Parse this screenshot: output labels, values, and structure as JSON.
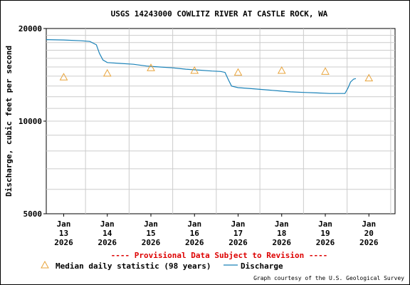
{
  "chart_data": {
    "type": "line",
    "title": "USGS 14243000 COWLITZ RIVER AT CASTLE ROCK, WA",
    "ylabel": "Discharge, cubic feet per second",
    "xlabel": "",
    "y_scale": "log",
    "ylim": [
      5000,
      20000
    ],
    "y_ticks": [
      {
        "value": 5000,
        "label": "5000"
      },
      {
        "value": 10000,
        "label": "10000"
      },
      {
        "value": 20000,
        "label": "20000"
      }
    ],
    "x_range_days": [
      12.6,
      20.6
    ],
    "x_ticks": [
      {
        "day": 13,
        "month": "Jan",
        "date": "13",
        "year": "2026"
      },
      {
        "day": 14,
        "month": "Jan",
        "date": "14",
        "year": "2026"
      },
      {
        "day": 15,
        "month": "Jan",
        "date": "15",
        "year": "2026"
      },
      {
        "day": 16,
        "month": "Jan",
        "date": "16",
        "year": "2026"
      },
      {
        "day": 17,
        "month": "Jan",
        "date": "17",
        "year": "2026"
      },
      {
        "day": 18,
        "month": "Jan",
        "date": "18",
        "year": "2026"
      },
      {
        "day": 19,
        "month": "Jan",
        "date": "19",
        "year": "2026"
      },
      {
        "day": 20,
        "month": "Jan",
        "date": "20",
        "year": "2026"
      }
    ],
    "series": [
      {
        "name": "Discharge",
        "style": "line",
        "color": "#1a82b8",
        "points": [
          [
            12.6,
            18400
          ],
          [
            13.0,
            18350
          ],
          [
            13.4,
            18250
          ],
          [
            13.6,
            18150
          ],
          [
            13.75,
            17700
          ],
          [
            13.82,
            16600
          ],
          [
            13.9,
            15800
          ],
          [
            14.0,
            15500
          ],
          [
            14.3,
            15400
          ],
          [
            14.6,
            15300
          ],
          [
            14.9,
            15100
          ],
          [
            15.2,
            15000
          ],
          [
            15.5,
            14900
          ],
          [
            15.8,
            14750
          ],
          [
            16.1,
            14650
          ],
          [
            16.4,
            14550
          ],
          [
            16.6,
            14500
          ],
          [
            16.7,
            14400
          ],
          [
            16.78,
            13600
          ],
          [
            16.85,
            13000
          ],
          [
            17.0,
            12850
          ],
          [
            17.3,
            12750
          ],
          [
            17.6,
            12650
          ],
          [
            17.9,
            12550
          ],
          [
            18.2,
            12450
          ],
          [
            18.5,
            12400
          ],
          [
            18.8,
            12350
          ],
          [
            19.1,
            12300
          ],
          [
            19.35,
            12300
          ],
          [
            19.45,
            12300
          ],
          [
            19.52,
            12800
          ],
          [
            19.58,
            13400
          ],
          [
            19.65,
            13700
          ],
          [
            19.7,
            13750
          ]
        ]
      },
      {
        "name": "Median daily statistic (98 years)",
        "style": "triangle",
        "color": "#e8a33a",
        "points": [
          [
            13.0,
            13900
          ],
          [
            14.0,
            14300
          ],
          [
            15.0,
            14900
          ],
          [
            16.0,
            14600
          ],
          [
            17.0,
            14400
          ],
          [
            18.0,
            14600
          ],
          [
            19.0,
            14500
          ],
          [
            20.0,
            13800
          ]
        ]
      }
    ],
    "grid": true,
    "legend_placement": "bottom",
    "annotation": "---- Provisional Data Subject to Revision ----",
    "credit": "Graph courtesy of the U.S. Geological Survey"
  }
}
